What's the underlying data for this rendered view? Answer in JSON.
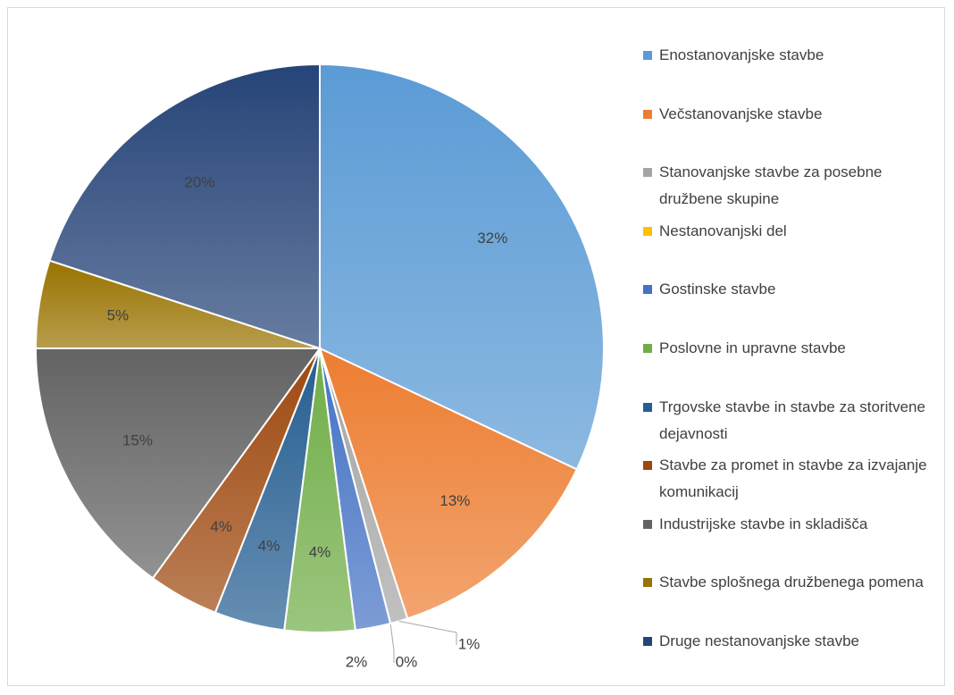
{
  "chart_data": {
    "type": "pie",
    "categories": [
      "Enostanovanjske stavbe",
      "Večstanovanjske stavbe",
      "Stanovanjske stavbe za posebne družbene skupine",
      "Nestanovanjski del",
      "Gostinske stavbe",
      "Poslovne in upravne stavbe",
      "Trgovske stavbe in stavbe za storitvene dejavnosti",
      "Stavbe za promet in stavbe za izvajanje komunikacij",
      "Industrijske stavbe in skladišča",
      "Stavbe splošnega družbenega pomena",
      "Druge nestanovanjske stavbe"
    ],
    "values": [
      32,
      13,
      1,
      0,
      2,
      4,
      4,
      4,
      15,
      5,
      20
    ],
    "value_labels": [
      "32%",
      "13%",
      "1%",
      "0%",
      "2%",
      "4%",
      "4%",
      "4%",
      "15%",
      "5%",
      "20%"
    ],
    "colors": [
      "#5b9bd5",
      "#ed7d31",
      "#a5a5a5",
      "#ffc000",
      "#4472c4",
      "#70ad47",
      "#255e91",
      "#9e480e",
      "#636363",
      "#997300",
      "#264478"
    ],
    "legend": "right"
  }
}
